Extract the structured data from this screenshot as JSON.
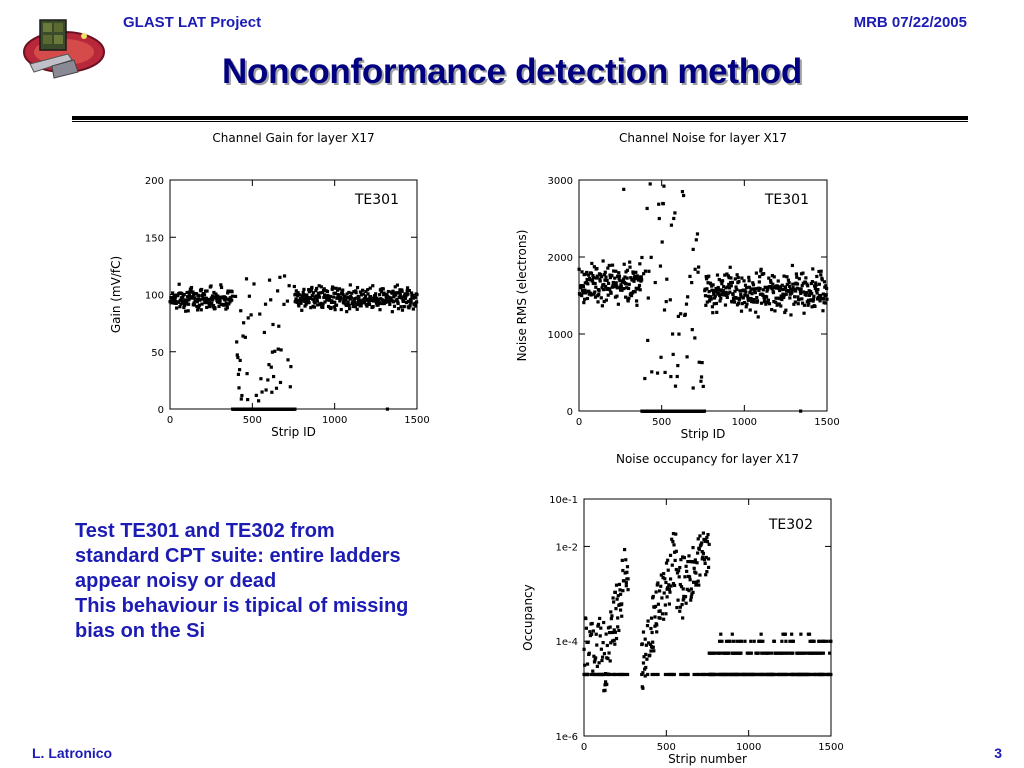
{
  "header": {
    "project": "GLAST LAT Project",
    "date": "MRB 07/22/2005"
  },
  "title": "Nonconformance detection method",
  "body_lines": [
    "Test TE301 and TE302  from",
    "standard CPT suite: entire ladders",
    "appear noisy or dead",
    "This behaviour is tipical of missing",
    "bias on the Si"
  ],
  "footer": {
    "author": "L. Latronico",
    "page": "3"
  },
  "colors": {
    "text_blue": "#1c1cb4",
    "title_navy": "#000080"
  },
  "chart_data": [
    {
      "type": "scatter",
      "title": "Channel Gain for layer X17",
      "xlabel": "Strip ID",
      "ylabel": "Gain (mV/fC)",
      "annotation": "TE301",
      "xlim": [
        0,
        1500
      ],
      "ylim": [
        0,
        200
      ],
      "xticks": [
        "0",
        "500",
        "1000",
        "1500"
      ],
      "yticks": [
        "0",
        "50",
        "100",
        "150",
        "200"
      ],
      "regions": [
        {
          "x": [
            0,
            380
          ],
          "y_mean": 97,
          "y_spread": 8,
          "kind": "band"
        },
        {
          "x": [
            380,
            760
          ],
          "y_min": 0,
          "y_max": 125,
          "kind": "scatter"
        },
        {
          "x": [
            380,
            760
          ],
          "y": 0,
          "kind": "baseline"
        },
        {
          "x": [
            760,
            1536
          ],
          "y_mean": 97,
          "y_spread": 8,
          "kind": "band"
        }
      ],
      "points": [
        [
          1320,
          0
        ]
      ]
    },
    {
      "type": "scatter",
      "title": "Channel Noise for layer X17",
      "xlabel": "Strip ID",
      "ylabel": "Noise RMS (electrons)",
      "annotation": "TE301",
      "xlim": [
        0,
        1500
      ],
      "ylim": [
        0,
        3000
      ],
      "xticks": [
        "0",
        "500",
        "1000",
        "1500"
      ],
      "yticks": [
        "0",
        "1000",
        "2000",
        "3000"
      ],
      "regions": [
        {
          "x": [
            0,
            380
          ],
          "y_mean": 1650,
          "y_spread": 220,
          "kind": "band"
        },
        {
          "x": [
            380,
            760
          ],
          "y_min": 300,
          "y_max": 3000,
          "kind": "scatter"
        },
        {
          "x": [
            380,
            760
          ],
          "y": 0,
          "kind": "baseline"
        },
        {
          "x": [
            760,
            1536
          ],
          "y_mean": 1550,
          "y_spread": 200,
          "kind": "band"
        }
      ],
      "points": [
        [
          270,
          2880
        ],
        [
          430,
          2950
        ],
        [
          690,
          2100
        ],
        [
          700,
          950
        ],
        [
          690,
          300
        ],
        [
          1340,
          0
        ]
      ]
    },
    {
      "type": "scatter",
      "title": "Noise occupancy for layer X17",
      "xlabel": "Strip number",
      "ylabel": "Occupancy",
      "annotation": "TE302",
      "xlim": [
        0,
        1500
      ],
      "ylim_log10": [
        -6,
        -1
      ],
      "xticks": [
        "0",
        "500",
        "1000",
        "1500"
      ],
      "yticks": [
        "1e-6",
        "1e-4",
        "1e-2",
        "10e-1"
      ],
      "regions": [
        {
          "x": [
            0,
            120
          ],
          "log_min": -4.7,
          "log_max": -3.5,
          "kind": "scatter"
        },
        {
          "x": [
            120,
            270
          ],
          "log_min": -4.5,
          "log_max": -2.1,
          "kind": "rise"
        },
        {
          "x": [
            350,
            560
          ],
          "log_min": -4.3,
          "log_max": -2.0,
          "kind": "rise"
        },
        {
          "x": [
            560,
            760
          ],
          "log_min": -3.0,
          "log_max": -1.7,
          "kind": "rise"
        },
        {
          "x": [
            760,
            1536
          ],
          "log_min": -4.9,
          "log_max": -3.8,
          "kind": "sparse"
        }
      ],
      "floor_log10": -4.7
    }
  ]
}
